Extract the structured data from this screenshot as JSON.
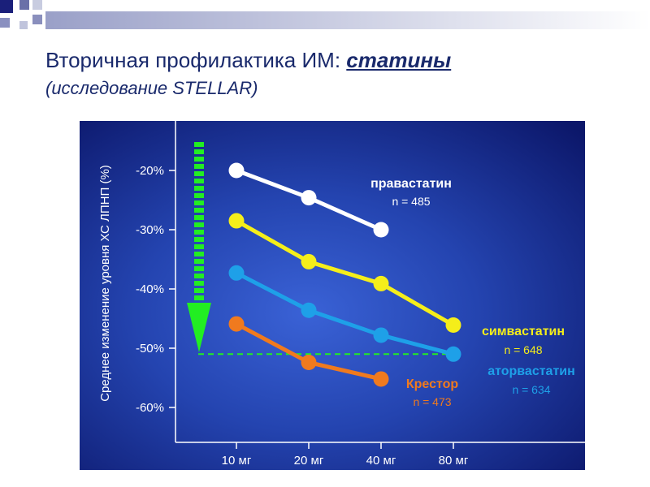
{
  "title": {
    "prefix": "Вторичная профилактика ИМ: ",
    "emphasis": "статины"
  },
  "subtitle": "(исследование STELLAR)",
  "colors": {
    "title": "#1a2a6c",
    "background_dark": "#0b1560",
    "background_light": "#2f55c8",
    "arrow": "#22ee22",
    "pravastatin": "#ffffff",
    "simvastatin": "#f5ee1a",
    "atorvastatin": "#1ea0e8",
    "krestor": "#f07a1e"
  },
  "chart_data": {
    "type": "line",
    "ylabel": "Среднее изменение уровня ХС ЛПНП (%)",
    "ylim": [
      -65,
      -10
    ],
    "yticks": [
      -20,
      -30,
      -40,
      -50,
      -60
    ],
    "ytick_labels": [
      "-20%",
      "-30%",
      "-40%",
      "-50%",
      "-60%"
    ],
    "categories": [
      "10 мг",
      "20 мг",
      "40 мг",
      "80 мг"
    ],
    "reference_line": -51,
    "series": [
      {
        "key": "pravastatin",
        "name": "правастатин",
        "n_label": "n = 485",
        "color": "#ffffff",
        "values": [
          -20,
          -24.6,
          -30,
          null
        ]
      },
      {
        "key": "simvastatin",
        "name": "симвастатин",
        "n_label": "n = 648",
        "color": "#f5ee1a",
        "values": [
          -28.5,
          -35.4,
          -39.1,
          -46.1
        ]
      },
      {
        "key": "atorvastatin",
        "name": "аторвастатин",
        "n_label": "n = 634",
        "color": "#1ea0e8",
        "values": [
          -37.3,
          -43.6,
          -47.8,
          -51
        ]
      },
      {
        "key": "krestor",
        "name": "Крестор",
        "n_label": "n = 473",
        "color": "#f07a1e",
        "values": [
          -45.9,
          -52.4,
          -55.2,
          null
        ]
      }
    ]
  }
}
